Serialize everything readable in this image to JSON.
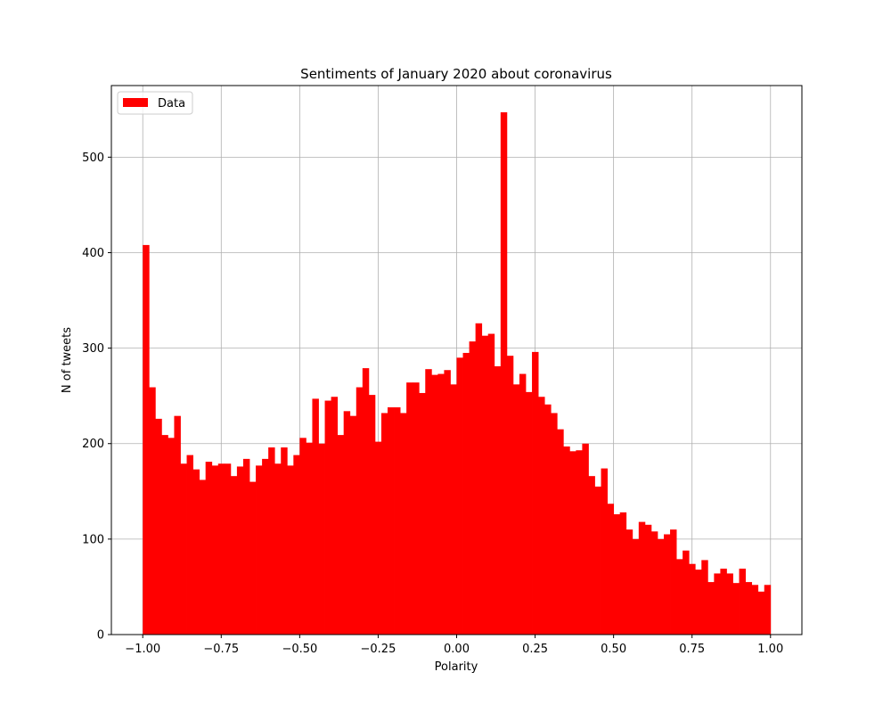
{
  "chart_data": {
    "type": "bar",
    "title": "Sentiments of January 2020 about coronavirus",
    "xlabel": "Polarity",
    "ylabel": "N of tweets",
    "xlim": [
      -1.1,
      1.1
    ],
    "ylim": [
      0,
      575
    ],
    "grid": true,
    "legend_position": "top-left",
    "bar_color": "#ff0000",
    "x_ticks": [
      -1.0,
      -0.75,
      -0.5,
      -0.25,
      0.0,
      0.25,
      0.5,
      0.75,
      1.0
    ],
    "x_tick_labels": [
      "−1.00",
      "−0.75",
      "−0.50",
      "−0.25",
      "0.00",
      "0.25",
      "0.50",
      "0.75",
      "1.00"
    ],
    "y_ticks": [
      0,
      100,
      200,
      300,
      400,
      500
    ],
    "y_tick_labels": [
      "0",
      "100",
      "200",
      "300",
      "400",
      "500"
    ],
    "series": [
      {
        "name": "Data",
        "bin_start": -1.0,
        "bin_end": 1.0,
        "bins": 100,
        "values": [
          408,
          259,
          226,
          209,
          206,
          229,
          179,
          188,
          173,
          162,
          181,
          177,
          179,
          179,
          166,
          176,
          184,
          160,
          177,
          184,
          196,
          179,
          196,
          177,
          188,
          206,
          201,
          247,
          200,
          245,
          249,
          209,
          234,
          229,
          259,
          279,
          251,
          202,
          232,
          238,
          238,
          232,
          264,
          264,
          253,
          278,
          272,
          273,
          277,
          262,
          290,
          295,
          307,
          326,
          313,
          315,
          281,
          547,
          292,
          262,
          273,
          254,
          296,
          249,
          241,
          232,
          215,
          197,
          192,
          193,
          200,
          166,
          155,
          174,
          137,
          126,
          128,
          110,
          100,
          118,
          115,
          108,
          100,
          105,
          110,
          79,
          88,
          74,
          68,
          78,
          55,
          64,
          69,
          64,
          54,
          69,
          55,
          52,
          45,
          52
        ]
      }
    ]
  }
}
